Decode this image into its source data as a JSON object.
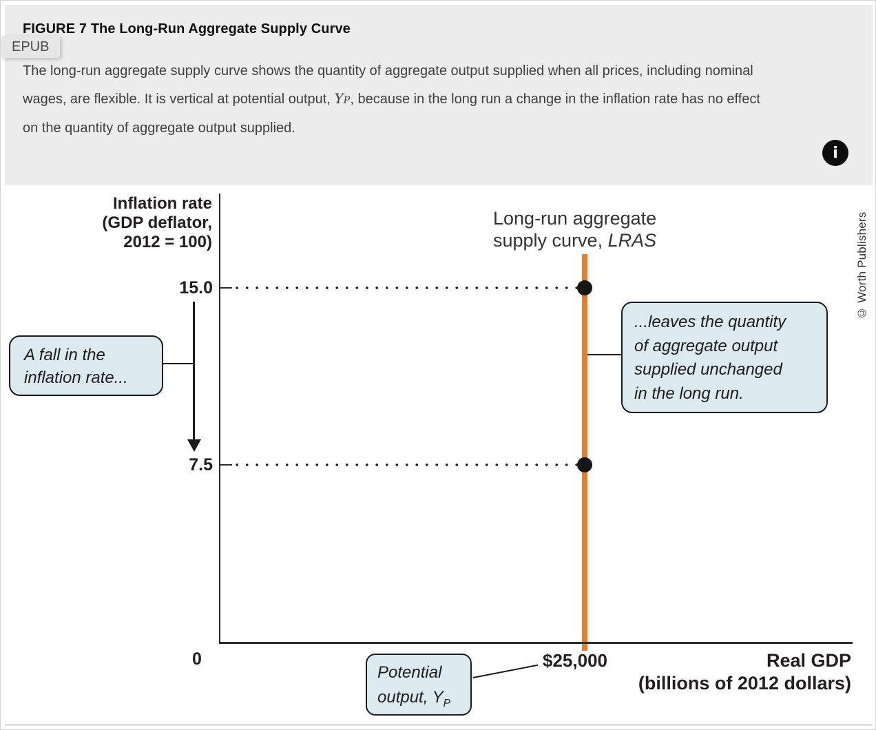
{
  "header": {
    "badge_label": "EPUB",
    "title": "FIGURE 7 The Long-Run Aggregate Supply Curve",
    "caption_line1": "The long-run aggregate supply curve shows the quantity of aggregate output supplied when all prices, including nominal",
    "caption_line2_pre": "wages, are flexible. It is vertical at potential output, ",
    "caption_math_var": "Y",
    "caption_math_sub": "P",
    "caption_line2_post": ", because in the long run a change in the inflation rate has no effect",
    "caption_line3": "on the quantity of aggregate output supplied.",
    "info_icon_glyph": "i"
  },
  "figure": {
    "credit": "© Worth Publishers",
    "y_axis_title_line1": "Inflation rate",
    "y_axis_title_line2": "(GDP deflator,",
    "y_axis_title_line3": "2012 = 100)",
    "y_tick_upper": "15.0",
    "y_tick_lower": "7.5",
    "origin_label": "0",
    "x_tick_label": "$25,000",
    "x_axis_title_line1": "Real GDP",
    "x_axis_title_line2": "(billions of 2012 dollars)",
    "curve_label_line1": "Long-run aggregate",
    "curve_label_line2_pre": "supply curve, ",
    "curve_label_italic": "LRAS",
    "callout_left_line1": "A fall in the",
    "callout_left_line2": "inflation rate...",
    "callout_right_line1": "...leaves the quantity",
    "callout_right_line2": "of aggregate output",
    "callout_right_line3": "supplied unchanged",
    "callout_right_line4": "in the long run.",
    "callout_potential_line1": "Potential",
    "callout_potential_line2_pre": "output, Y",
    "callout_potential_sub": "P",
    "colors": {
      "lras_orange": "#e87e2f",
      "callout_bg": "#dce9ee",
      "ink": "#231f20",
      "panel_gray": "#ececec"
    }
  },
  "chart_data": {
    "type": "line",
    "title": "Long-run aggregate supply curve, LRAS",
    "xlabel": "Real GDP (billions of 2012 dollars)",
    "ylabel": "Inflation rate (GDP deflator, 2012 = 100)",
    "x_ticks": [
      0,
      25000
    ],
    "y_ticks": [
      7.5,
      15.0
    ],
    "ylim": [
      0,
      17.3
    ],
    "grid": false,
    "legend": "none",
    "series": [
      {
        "name": "LRAS",
        "shape": "vertical-line",
        "x": 25000,
        "y_span": [
          0,
          17.3
        ],
        "color": "#e87e2f"
      }
    ],
    "points": [
      {
        "x": 25000,
        "y": 15.0
      },
      {
        "x": 25000,
        "y": 7.5
      }
    ],
    "reference_lines": [
      {
        "style": "dotted",
        "y": 15.0,
        "from_x": 0,
        "to_x": 25000
      },
      {
        "style": "dotted",
        "y": 7.5,
        "from_x": 0,
        "to_x": 25000
      }
    ],
    "annotations": [
      "A fall in the inflation rate...",
      "...leaves the quantity of aggregate output supplied unchanged in the long run.",
      "Potential output, YP",
      "arrow from 15.0 down to 7.5 on inflation axis"
    ]
  }
}
